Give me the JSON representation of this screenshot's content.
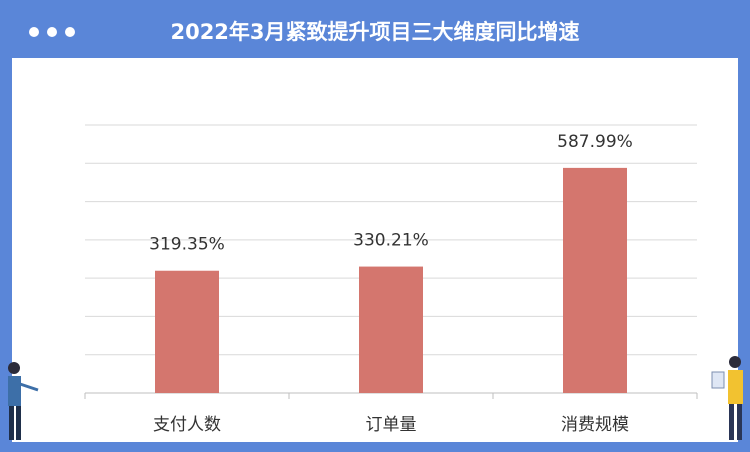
{
  "chart_data": {
    "type": "bar",
    "title": "2022年3月紧致提升项目三大维度同比增速",
    "categories": [
      "支付人数",
      "订单量",
      "消费规模"
    ],
    "values": [
      319.35,
      330.21,
      587.99
    ],
    "value_labels": [
      "319.35%",
      "330.21%",
      "587.99%"
    ],
    "color": "#d4766e",
    "ylim": [
      0,
      700
    ],
    "yticks": [
      0,
      100,
      200,
      300,
      400,
      500,
      600,
      700
    ],
    "grid": true
  }
}
